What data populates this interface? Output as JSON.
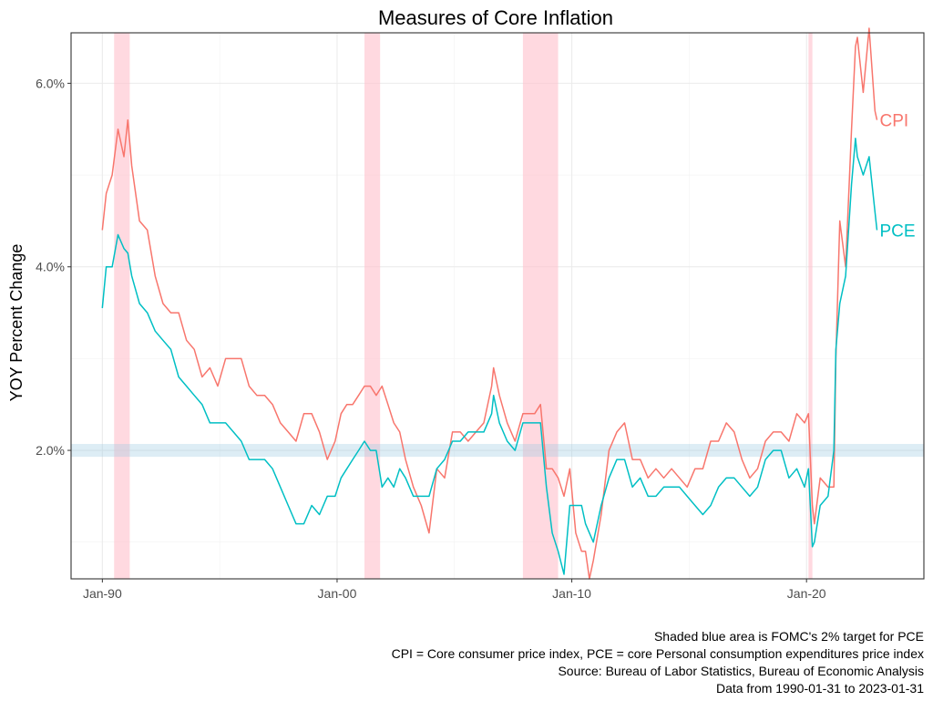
{
  "chart_data": {
    "type": "line",
    "title": "Measures of Core Inflation",
    "xlabel": "",
    "ylabel": "YOY Percent Change",
    "x_tick_labels": [
      "Jan-90",
      "Jan-00",
      "Jan-10",
      "Jan-20"
    ],
    "y_tick_labels": [
      "2.0%",
      "4.0%",
      "6.0%"
    ],
    "xlim": [
      "1988-09-01",
      "2025-01-01"
    ],
    "ylim": [
      0.6,
      6.55
    ],
    "grid": true,
    "legend": "none (series labelled at line ends)",
    "target_band": {
      "from": 1.93,
      "to": 2.07,
      "color": "#9ecae1"
    },
    "recessions": [
      {
        "start": "1990-07-01",
        "end": "1991-03-01"
      },
      {
        "start": "2001-03-01",
        "end": "2001-11-01"
      },
      {
        "start": "2007-12-01",
        "end": "2009-06-01"
      },
      {
        "start": "2020-02-01",
        "end": "2020-04-01"
      }
    ],
    "recession_color": "#ffc0cb",
    "series": [
      {
        "name": "CPI",
        "color": "#f8766d",
        "points": [
          [
            "1990-01-01",
            4.4
          ],
          [
            "1990-03-01",
            4.8
          ],
          [
            "1990-06-01",
            5.0
          ],
          [
            "1990-09-01",
            5.5
          ],
          [
            "1990-12-01",
            5.2
          ],
          [
            "1991-02-01",
            5.6
          ],
          [
            "1991-04-01",
            5.1
          ],
          [
            "1991-08-01",
            4.5
          ],
          [
            "1991-12-01",
            4.4
          ],
          [
            "1992-04-01",
            3.9
          ],
          [
            "1992-08-01",
            3.6
          ],
          [
            "1992-12-01",
            3.5
          ],
          [
            "1993-04-01",
            3.5
          ],
          [
            "1993-08-01",
            3.2
          ],
          [
            "1993-12-01",
            3.1
          ],
          [
            "1994-04-01",
            2.8
          ],
          [
            "1994-08-01",
            2.9
          ],
          [
            "1994-12-01",
            2.7
          ],
          [
            "1995-04-01",
            3.0
          ],
          [
            "1995-08-01",
            3.0
          ],
          [
            "1995-12-01",
            3.0
          ],
          [
            "1996-04-01",
            2.7
          ],
          [
            "1996-08-01",
            2.6
          ],
          [
            "1996-12-01",
            2.6
          ],
          [
            "1997-04-01",
            2.5
          ],
          [
            "1997-08-01",
            2.3
          ],
          [
            "1997-12-01",
            2.2
          ],
          [
            "1998-04-01",
            2.1
          ],
          [
            "1998-08-01",
            2.4
          ],
          [
            "1998-12-01",
            2.4
          ],
          [
            "1999-04-01",
            2.2
          ],
          [
            "1999-08-01",
            1.9
          ],
          [
            "1999-12-01",
            2.1
          ],
          [
            "2000-03-01",
            2.4
          ],
          [
            "2000-06-01",
            2.5
          ],
          [
            "2000-09-01",
            2.5
          ],
          [
            "2000-12-01",
            2.6
          ],
          [
            "2001-03-01",
            2.7
          ],
          [
            "2001-06-01",
            2.7
          ],
          [
            "2001-09-01",
            2.6
          ],
          [
            "2001-12-01",
            2.7
          ],
          [
            "2002-03-01",
            2.5
          ],
          [
            "2002-06-01",
            2.3
          ],
          [
            "2002-09-01",
            2.2
          ],
          [
            "2002-12-01",
            1.9
          ],
          [
            "2003-04-01",
            1.6
          ],
          [
            "2003-08-01",
            1.4
          ],
          [
            "2003-12-01",
            1.1
          ],
          [
            "2004-04-01",
            1.8
          ],
          [
            "2004-08-01",
            1.7
          ],
          [
            "2004-12-01",
            2.2
          ],
          [
            "2005-04-01",
            2.2
          ],
          [
            "2005-08-01",
            2.1
          ],
          [
            "2005-12-01",
            2.2
          ],
          [
            "2006-04-01",
            2.3
          ],
          [
            "2006-08-01",
            2.7
          ],
          [
            "2006-09-01",
            2.9
          ],
          [
            "2006-12-01",
            2.6
          ],
          [
            "2007-04-01",
            2.3
          ],
          [
            "2007-08-01",
            2.1
          ],
          [
            "2007-12-01",
            2.4
          ],
          [
            "2008-03-01",
            2.4
          ],
          [
            "2008-06-01",
            2.4
          ],
          [
            "2008-09-01",
            2.5
          ],
          [
            "2008-12-01",
            1.8
          ],
          [
            "2009-03-01",
            1.8
          ],
          [
            "2009-06-01",
            1.7
          ],
          [
            "2009-09-01",
            1.5
          ],
          [
            "2009-12-01",
            1.8
          ],
          [
            "2010-03-01",
            1.1
          ],
          [
            "2010-06-01",
            0.9
          ],
          [
            "2010-08-01",
            0.9
          ],
          [
            "2010-10-01",
            0.6
          ],
          [
            "2010-12-01",
            0.8
          ],
          [
            "2011-04-01",
            1.3
          ],
          [
            "2011-08-01",
            2.0
          ],
          [
            "2011-12-01",
            2.2
          ],
          [
            "2012-04-01",
            2.3
          ],
          [
            "2012-08-01",
            1.9
          ],
          [
            "2012-12-01",
            1.9
          ],
          [
            "2013-04-01",
            1.7
          ],
          [
            "2013-08-01",
            1.8
          ],
          [
            "2013-12-01",
            1.7
          ],
          [
            "2014-04-01",
            1.8
          ],
          [
            "2014-08-01",
            1.7
          ],
          [
            "2014-12-01",
            1.6
          ],
          [
            "2015-04-01",
            1.8
          ],
          [
            "2015-08-01",
            1.8
          ],
          [
            "2015-12-01",
            2.1
          ],
          [
            "2016-04-01",
            2.1
          ],
          [
            "2016-08-01",
            2.3
          ],
          [
            "2016-12-01",
            2.2
          ],
          [
            "2017-04-01",
            1.9
          ],
          [
            "2017-08-01",
            1.7
          ],
          [
            "2017-12-01",
            1.8
          ],
          [
            "2018-04-01",
            2.1
          ],
          [
            "2018-08-01",
            2.2
          ],
          [
            "2018-12-01",
            2.2
          ],
          [
            "2019-04-01",
            2.1
          ],
          [
            "2019-08-01",
            2.4
          ],
          [
            "2019-12-01",
            2.3
          ],
          [
            "2020-02-01",
            2.4
          ],
          [
            "2020-04-01",
            1.4
          ],
          [
            "2020-05-01",
            1.2
          ],
          [
            "2020-08-01",
            1.7
          ],
          [
            "2020-12-01",
            1.6
          ],
          [
            "2021-03-01",
            1.6
          ],
          [
            "2021-04-01",
            3.0
          ],
          [
            "2021-06-01",
            4.5
          ],
          [
            "2021-09-01",
            4.0
          ],
          [
            "2021-12-01",
            5.5
          ],
          [
            "2022-02-01",
            6.4
          ],
          [
            "2022-03-01",
            6.5
          ],
          [
            "2022-06-01",
            5.9
          ],
          [
            "2022-09-01",
            6.6
          ],
          [
            "2022-12-01",
            5.7
          ],
          [
            "2023-01-01",
            5.6
          ]
        ]
      },
      {
        "name": "PCE",
        "color": "#00bfc4",
        "points": [
          [
            "1990-01-01",
            3.55
          ],
          [
            "1990-03-01",
            4.0
          ],
          [
            "1990-06-01",
            4.0
          ],
          [
            "1990-09-01",
            4.35
          ],
          [
            "1990-12-01",
            4.2
          ],
          [
            "1991-02-01",
            4.15
          ],
          [
            "1991-04-01",
            3.9
          ],
          [
            "1991-08-01",
            3.6
          ],
          [
            "1991-12-01",
            3.5
          ],
          [
            "1992-04-01",
            3.3
          ],
          [
            "1992-08-01",
            3.2
          ],
          [
            "1992-12-01",
            3.1
          ],
          [
            "1993-04-01",
            2.8
          ],
          [
            "1993-08-01",
            2.7
          ],
          [
            "1993-12-01",
            2.6
          ],
          [
            "1994-04-01",
            2.5
          ],
          [
            "1994-08-01",
            2.3
          ],
          [
            "1994-12-01",
            2.3
          ],
          [
            "1995-04-01",
            2.3
          ],
          [
            "1995-08-01",
            2.2
          ],
          [
            "1995-12-01",
            2.1
          ],
          [
            "1996-04-01",
            1.9
          ],
          [
            "1996-08-01",
            1.9
          ],
          [
            "1996-12-01",
            1.9
          ],
          [
            "1997-04-01",
            1.8
          ],
          [
            "1997-08-01",
            1.6
          ],
          [
            "1997-12-01",
            1.4
          ],
          [
            "1998-04-01",
            1.2
          ],
          [
            "1998-08-01",
            1.2
          ],
          [
            "1998-12-01",
            1.4
          ],
          [
            "1999-04-01",
            1.3
          ],
          [
            "1999-08-01",
            1.5
          ],
          [
            "1999-12-01",
            1.5
          ],
          [
            "2000-03-01",
            1.7
          ],
          [
            "2000-06-01",
            1.8
          ],
          [
            "2000-09-01",
            1.9
          ],
          [
            "2000-12-01",
            2.0
          ],
          [
            "2001-03-01",
            2.1
          ],
          [
            "2001-06-01",
            2.0
          ],
          [
            "2001-09-01",
            2.0
          ],
          [
            "2001-12-01",
            1.6
          ],
          [
            "2002-03-01",
            1.7
          ],
          [
            "2002-06-01",
            1.6
          ],
          [
            "2002-09-01",
            1.8
          ],
          [
            "2002-12-01",
            1.7
          ],
          [
            "2003-04-01",
            1.5
          ],
          [
            "2003-08-01",
            1.5
          ],
          [
            "2003-12-01",
            1.5
          ],
          [
            "2004-04-01",
            1.8
          ],
          [
            "2004-08-01",
            1.9
          ],
          [
            "2004-12-01",
            2.1
          ],
          [
            "2005-04-01",
            2.1
          ],
          [
            "2005-08-01",
            2.2
          ],
          [
            "2005-12-01",
            2.2
          ],
          [
            "2006-04-01",
            2.2
          ],
          [
            "2006-08-01",
            2.4
          ],
          [
            "2006-09-01",
            2.6
          ],
          [
            "2006-12-01",
            2.3
          ],
          [
            "2007-04-01",
            2.1
          ],
          [
            "2007-08-01",
            2.0
          ],
          [
            "2007-12-01",
            2.3
          ],
          [
            "2008-03-01",
            2.3
          ],
          [
            "2008-06-01",
            2.3
          ],
          [
            "2008-09-01",
            2.3
          ],
          [
            "2008-12-01",
            1.6
          ],
          [
            "2009-03-01",
            1.1
          ],
          [
            "2009-06-01",
            0.9
          ],
          [
            "2009-09-01",
            0.65
          ],
          [
            "2009-12-01",
            1.4
          ],
          [
            "2010-03-01",
            1.4
          ],
          [
            "2010-06-01",
            1.4
          ],
          [
            "2010-08-01",
            1.2
          ],
          [
            "2010-10-01",
            1.1
          ],
          [
            "2010-12-01",
            1.0
          ],
          [
            "2011-04-01",
            1.4
          ],
          [
            "2011-08-01",
            1.7
          ],
          [
            "2011-12-01",
            1.9
          ],
          [
            "2012-04-01",
            1.9
          ],
          [
            "2012-08-01",
            1.6
          ],
          [
            "2012-12-01",
            1.7
          ],
          [
            "2013-04-01",
            1.5
          ],
          [
            "2013-08-01",
            1.5
          ],
          [
            "2013-12-01",
            1.6
          ],
          [
            "2014-04-01",
            1.6
          ],
          [
            "2014-08-01",
            1.6
          ],
          [
            "2014-12-01",
            1.5
          ],
          [
            "2015-04-01",
            1.4
          ],
          [
            "2015-08-01",
            1.3
          ],
          [
            "2015-12-01",
            1.4
          ],
          [
            "2016-04-01",
            1.6
          ],
          [
            "2016-08-01",
            1.7
          ],
          [
            "2016-12-01",
            1.7
          ],
          [
            "2017-04-01",
            1.6
          ],
          [
            "2017-08-01",
            1.5
          ],
          [
            "2017-12-01",
            1.6
          ],
          [
            "2018-04-01",
            1.9
          ],
          [
            "2018-08-01",
            2.0
          ],
          [
            "2018-12-01",
            2.0
          ],
          [
            "2019-04-01",
            1.7
          ],
          [
            "2019-08-01",
            1.8
          ],
          [
            "2019-12-01",
            1.6
          ],
          [
            "2020-02-01",
            1.8
          ],
          [
            "2020-04-01",
            0.95
          ],
          [
            "2020-05-01",
            1.0
          ],
          [
            "2020-08-01",
            1.4
          ],
          [
            "2020-12-01",
            1.5
          ],
          [
            "2021-03-01",
            2.0
          ],
          [
            "2021-04-01",
            3.1
          ],
          [
            "2021-06-01",
            3.6
          ],
          [
            "2021-09-01",
            3.9
          ],
          [
            "2021-12-01",
            4.9
          ],
          [
            "2022-02-01",
            5.4
          ],
          [
            "2022-03-01",
            5.2
          ],
          [
            "2022-06-01",
            5.0
          ],
          [
            "2022-09-01",
            5.2
          ],
          [
            "2022-12-01",
            4.6
          ],
          [
            "2023-01-01",
            4.4
          ]
        ]
      }
    ]
  },
  "caption": [
    "Shaded blue area is FOMC's 2% target for PCE",
    "CPI = Core consumer price index, PCE = core Personal consumption expenditures price index",
    "Source: Bureau of Labor Statistics, Bureau of Economic Analysis",
    "Data from 1990-01-31 to 2023-01-31"
  ]
}
